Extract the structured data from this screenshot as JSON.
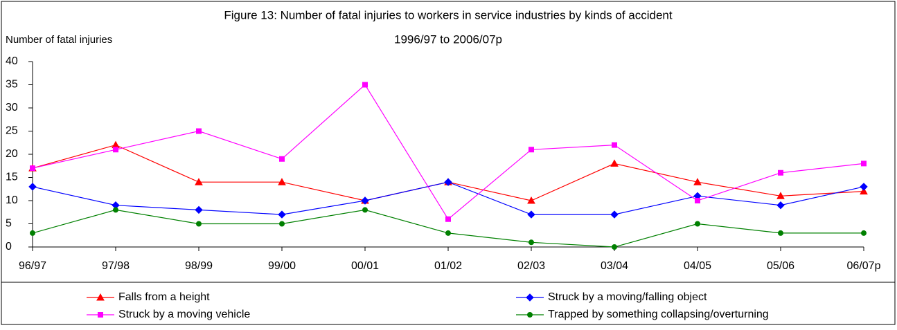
{
  "chart_data": {
    "type": "line",
    "title": "Figure 13:  Number of fatal injuries to workers in service industries by kinds of accident",
    "subtitle": "1996/97 to 2006/07p",
    "y_label": "Number of fatal injuries",
    "categories": [
      "96/97",
      "97/98",
      "98/99",
      "99/00",
      "00/01",
      "01/02",
      "02/03",
      "03/04",
      "04/05",
      "05/06",
      "06/07p"
    ],
    "series": [
      {
        "name": "Falls from a height",
        "color": "#ff0000",
        "marker": "triangle",
        "values": [
          17,
          22,
          14,
          14,
          10,
          14,
          10,
          18,
          14,
          11,
          12
        ]
      },
      {
        "name": "Struck by a moving/falling object",
        "color": "#0000ff",
        "marker": "diamond",
        "values": [
          13,
          9,
          8,
          7,
          10,
          14,
          7,
          7,
          11,
          9,
          13
        ]
      },
      {
        "name": "Struck by a moving vehicle",
        "color": "#ff00ff",
        "marker": "square",
        "values": [
          17,
          21,
          25,
          19,
          35,
          6,
          21,
          22,
          10,
          16,
          18
        ]
      },
      {
        "name": "Trapped by something collapsing/overturning",
        "color": "#008000",
        "marker": "circle",
        "values": [
          3,
          8,
          5,
          5,
          8,
          3,
          1,
          0,
          5,
          3,
          3
        ]
      }
    ],
    "ylim": [
      0,
      40
    ],
    "yticks": [
      0,
      5,
      10,
      15,
      20,
      25,
      30,
      35,
      40
    ]
  }
}
